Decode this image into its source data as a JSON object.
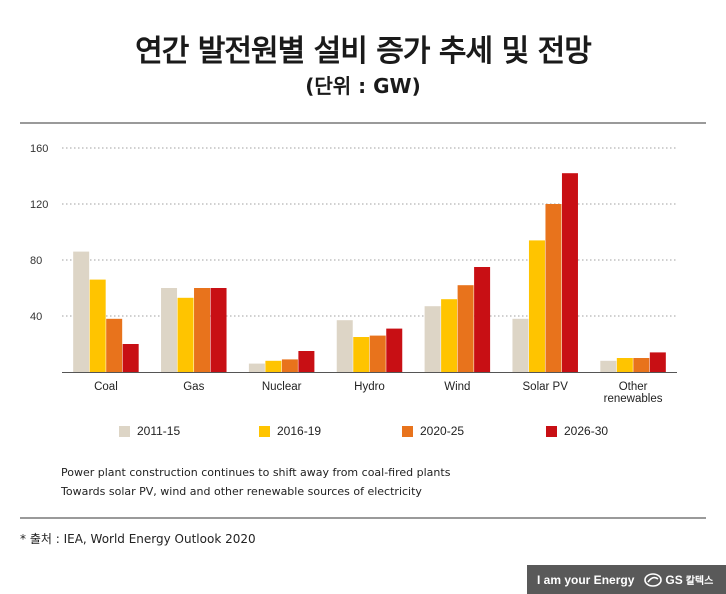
{
  "header": {
    "title": "연간 발전원별 설비 증가 추세 및 전망",
    "subtitle": "(단위 : GW)"
  },
  "chart_data": {
    "type": "bar",
    "title": "연간 발전원별 설비 증가 추세 및 전망",
    "unit": "GW",
    "categories": [
      "Coal",
      "Gas",
      "Nuclear",
      "Hydro",
      "Wind",
      "Solar PV",
      "Other renewables"
    ],
    "category_lines": [
      [
        "Coal"
      ],
      [
        "Gas"
      ],
      [
        "Nuclear"
      ],
      [
        "Hydro"
      ],
      [
        "Wind"
      ],
      [
        "Solar PV"
      ],
      [
        "Other",
        "renewables"
      ]
    ],
    "series": [
      {
        "name": "2011-15",
        "color": "#ddd5c6",
        "values": [
          86,
          60,
          6,
          37,
          47,
          38,
          8
        ]
      },
      {
        "name": "2016-19",
        "color": "#ffc400",
        "values": [
          66,
          53,
          8,
          25,
          52,
          94,
          10
        ]
      },
      {
        "name": "2020-25",
        "color": "#e8731c",
        "values": [
          38,
          60,
          9,
          26,
          62,
          120,
          10
        ]
      },
      {
        "name": "2026-30",
        "color": "#c80f14",
        "values": [
          20,
          60,
          15,
          31,
          75,
          142,
          14
        ]
      }
    ],
    "yticks": [
      40,
      80,
      120,
      160
    ],
    "ylim": [
      0,
      160
    ],
    "grid": true,
    "legend_position": "bottom"
  },
  "notes": [
    "Power plant construction continues to shift away from coal-fired plants",
    "Towards solar PV, wind and other renewable sources of electricity"
  ],
  "source": "* 출처 : IEA, World Energy Outlook 2020",
  "brand": {
    "slogan": "I am your Energy",
    "logo_text": "GS",
    "logo_suffix": "칼텍스"
  }
}
